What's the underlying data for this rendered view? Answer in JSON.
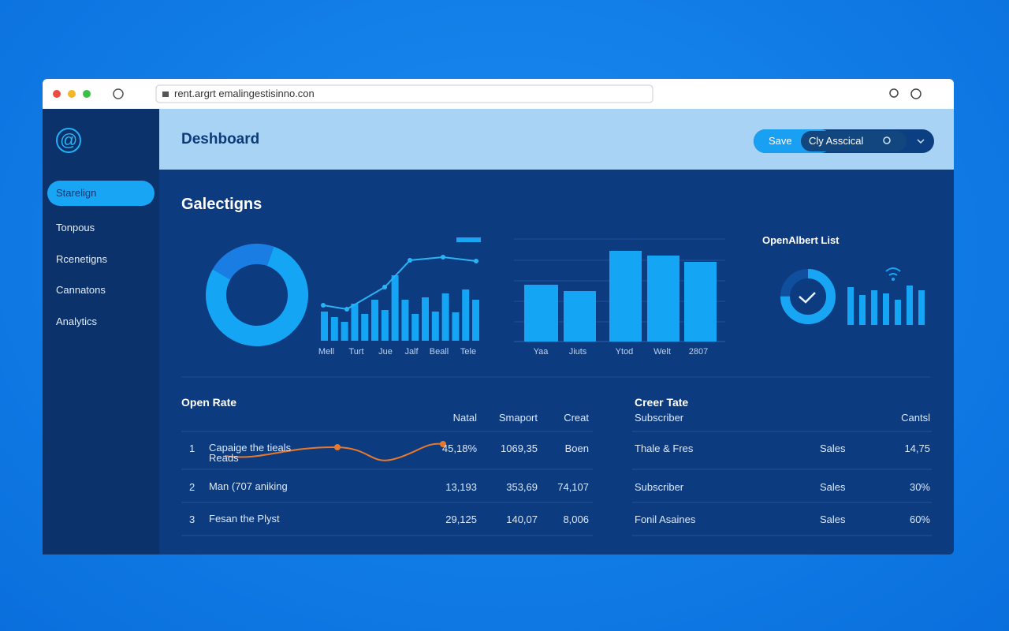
{
  "browser": {
    "url": "rent.argrt emalingestisinno.con"
  },
  "sidebar": {
    "logo": "@",
    "items": [
      "Starelign",
      "Tonpous",
      "Rcenetigns",
      "Cannatons",
      "Analytics"
    ]
  },
  "header": {
    "title": "Deshboard",
    "save": "Save",
    "account": "Cly Asscical"
  },
  "section": {
    "title": "Galectigns"
  },
  "donut": {
    "values": [
      22,
      78
    ]
  },
  "combo": {
    "categories": [
      "Mell",
      "Turt",
      "Jue",
      "Jalf",
      "Beall",
      "Tele"
    ],
    "bars": [
      37,
      30,
      24,
      47,
      34,
      52,
      39,
      83,
      52,
      34,
      55,
      37,
      60,
      36,
      65,
      52
    ],
    "line": [
      45,
      40,
      68,
      102,
      106,
      101
    ]
  },
  "bar_chart": {
    "categories": [
      "Yaa",
      "Jiuts",
      "Ytod",
      "Welt",
      "2807"
    ],
    "values": [
      72,
      64,
      115,
      109,
      101
    ]
  },
  "widget": {
    "title": "OpenAlbert List",
    "gauge": 75,
    "bars": [
      48,
      38,
      44,
      40,
      32,
      50,
      44
    ]
  },
  "open_rate": {
    "title": "Open Rate",
    "columns": [
      "Natal",
      "Smaport",
      "Creat"
    ],
    "rows": [
      [
        "1",
        "Capaige the tieals Reads",
        "45,18%",
        "1069,35",
        "Boen"
      ],
      [
        "2",
        "Man (707 aniking",
        "13,193",
        "353,69",
        "74,107"
      ],
      [
        "3",
        "Fesan the Plyst",
        "29,125",
        "140,07",
        "8,006"
      ]
    ]
  },
  "creer": {
    "title": "Creer Tate",
    "columns": [
      "Subscriber",
      "Cantsl"
    ],
    "rows": [
      [
        "Thale & Fres",
        "Sales",
        "14,75"
      ],
      [
        "Subscriber",
        "Sales",
        "30%"
      ],
      [
        "Fonil Asaines",
        "Sales",
        "60%"
      ]
    ]
  }
}
